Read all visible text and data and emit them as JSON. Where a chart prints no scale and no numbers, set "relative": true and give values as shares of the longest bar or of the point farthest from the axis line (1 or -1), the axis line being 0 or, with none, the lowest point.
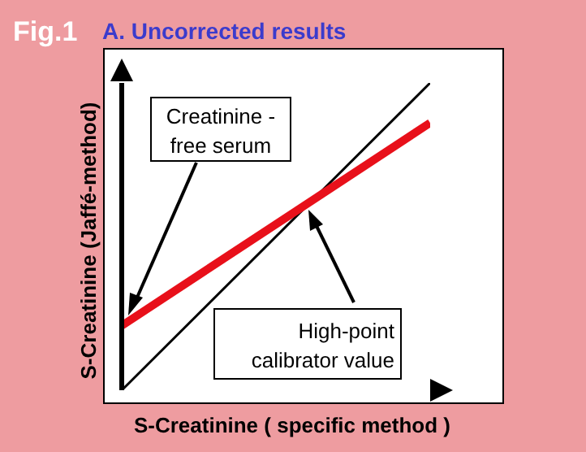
{
  "chart_data": {
    "type": "line",
    "title": "A. Uncorrected results",
    "xlabel": "S-Creatinine ( specific method )",
    "ylabel": "S-Creatinine (Jaffé-method)",
    "annotations": [
      "Fig.1",
      "Creatinine -\nfree serum",
      "High-point\ncalibrator value"
    ],
    "categories": [
      null,
      null
    ],
    "relative": true,
    "marker": "none",
    "series": [
      {
        "color": "#000000",
        "values": [
          0,
          1
        ]
      },
      {
        "color": "#e8101a",
        "values": [
          0.21,
          0.87
        ]
      }
    ]
  }
}
